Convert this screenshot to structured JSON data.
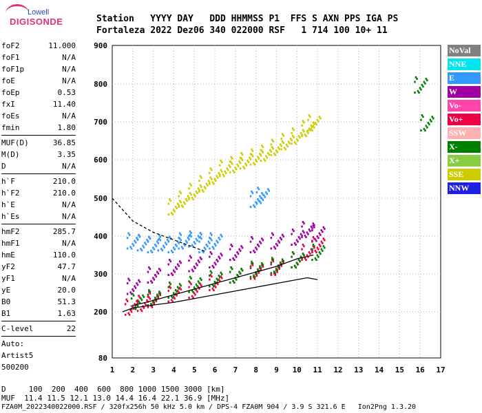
{
  "logo": {
    "top": "Lowell",
    "main": "DIGISONDE"
  },
  "header": {
    "line1": "Station   YYYY DAY   DDD HHMMSS P1  FFS S AXN PPS IGA PS",
    "line2": "Fortaleza 2022 Dez06 340 022000 RSF   1 714 100 10+ 11"
  },
  "params": {
    "group1": [
      {
        "name": "foF2",
        "value": "11.000"
      },
      {
        "name": "foF1",
        "value": "N/A"
      },
      {
        "name": "foF1p",
        "value": "N/A"
      },
      {
        "name": "foE",
        "value": "N/A"
      },
      {
        "name": "foEp",
        "value": "0.53"
      },
      {
        "name": "fxI",
        "value": "11.40"
      },
      {
        "name": "foEs",
        "value": "N/A"
      },
      {
        "name": "fmin",
        "value": "1.80"
      }
    ],
    "group2": [
      {
        "name": "MUF(D)",
        "value": "36.85"
      },
      {
        "name": "M(D)",
        "value": "3.35"
      },
      {
        "name": "D",
        "value": "N/A"
      }
    ],
    "group3": [
      {
        "name": "h`F",
        "value": "210.0"
      },
      {
        "name": "h`F2",
        "value": "210.0"
      },
      {
        "name": "h`E",
        "value": "N/A"
      },
      {
        "name": "h`Es",
        "value": "N/A"
      }
    ],
    "group4": [
      {
        "name": "hmF2",
        "value": "285.7"
      },
      {
        "name": "hmF1",
        "value": "N/A"
      },
      {
        "name": "hmE",
        "value": "110.0"
      },
      {
        "name": "yF2",
        "value": "47.7"
      },
      {
        "name": "yF1",
        "value": "N/A"
      },
      {
        "name": "yE",
        "value": "20.0"
      },
      {
        "name": "B0",
        "value": "51.3"
      },
      {
        "name": "B1",
        "value": "1.63"
      }
    ],
    "group5": [
      {
        "name": "C-level",
        "value": "22"
      }
    ],
    "auto": [
      "Auto:",
      "Artist5",
      "500200"
    ]
  },
  "legend": [
    {
      "label": "NoVal",
      "color": "#808080"
    },
    {
      "label": "NNE",
      "color": "#00e5ee"
    },
    {
      "label": "E",
      "color": "#3399ff"
    },
    {
      "label": "W",
      "color": "#a000a0"
    },
    {
      "label": "Vo-",
      "color": "#ff44aa"
    },
    {
      "label": "Vo+",
      "color": "#ee0044"
    },
    {
      "label": "SSW",
      "color": "#ffb0b0"
    },
    {
      "label": "X-",
      "color": "#008000"
    },
    {
      "label": "X+",
      "color": "#88cc44"
    },
    {
      "label": "SSE",
      "color": "#cccc00"
    },
    {
      "label": "NNW",
      "color": "#2020e0"
    }
  ],
  "footer": {
    "line1": "D     100  200  400  600  800 1000 1500 3000 [km]",
    "line2": "MUF  11.4 11.5 12.1 13.0 14.4 16.4 22.1 36.9 [MHz]",
    "line3": "FZA0M_2022340022000.RSF / 320fx256h 50 kHz 5.0 km / DPS-4 FZA0M 904 / 3.9 S 321.6 E   Ion2Png 1.3.20"
  },
  "chart_data": {
    "type": "scatter",
    "xlim": [
      1,
      17
    ],
    "ylim": [
      80,
      900
    ],
    "xticks": [
      "1",
      "2",
      "3",
      "4",
      "5",
      "6",
      "7",
      "8",
      "9",
      "10",
      "11",
      "12",
      "13",
      "14",
      "15",
      "16",
      "17"
    ],
    "yticks": [
      "80",
      "200",
      "300",
      "400",
      "500",
      "600",
      "700",
      "800",
      "900"
    ],
    "grid": true,
    "series": [
      {
        "name": "SSE",
        "color": "#cccc00",
        "x": [
          4.0,
          4.5,
          5.0,
          5.5,
          6.0,
          6.5,
          7.0,
          7.5,
          8.0,
          8.5,
          9.0,
          9.5,
          10.0,
          10.5,
          10.8
        ],
        "y": [
          480,
          500,
          520,
          540,
          560,
          580,
          590,
          600,
          610,
          620,
          635,
          650,
          665,
          685,
          700
        ]
      },
      {
        "name": "E",
        "color": "#3399ff",
        "x": [
          2.0,
          2.5,
          3.0,
          3.5,
          4.0,
          4.5,
          5.0,
          5.5,
          6.0,
          8.0,
          8.3
        ],
        "y": [
          390,
          385,
          380,
          385,
          380,
          390,
          395,
          380,
          390,
          500,
          510
        ]
      },
      {
        "name": "W",
        "color": "#a000a0",
        "x": [
          2.0,
          3.0,
          4.0,
          5.0,
          6.0,
          7.0,
          8.0,
          9.0,
          10.0,
          10.5,
          11.0
        ],
        "y": [
          270,
          300,
          320,
          330,
          340,
          360,
          380,
          390,
          400,
          420,
          410
        ]
      },
      {
        "name": "Vo+",
        "color": "#ee0044",
        "x": [
          1.9,
          2.5,
          3.0,
          4.0,
          5.0,
          6.0,
          7.0,
          8.0,
          9.0,
          10.0,
          10.5,
          11.0
        ],
        "y": [
          215,
          225,
          235,
          250,
          260,
          280,
          300,
          310,
          320,
          340,
          360,
          380
        ]
      },
      {
        "name": "X-",
        "color": "#008000",
        "x": [
          2.2,
          3.0,
          4.0,
          5.0,
          6.0,
          7.0,
          8.0,
          9.0,
          10.0,
          11.0,
          16.0,
          16.3
        ],
        "y": [
          230,
          240,
          260,
          275,
          290,
          300,
          315,
          325,
          340,
          360,
          800,
          700
        ]
      }
    ],
    "profile_true_height": {
      "x": [
        1.5,
        2.0,
        3.0,
        4.0,
        5.0,
        6.0,
        7.0,
        8.0,
        9.0,
        10.0,
        10.5,
        11.0
      ],
      "y": [
        200,
        210,
        218,
        225,
        235,
        245,
        255,
        265,
        275,
        285,
        290,
        285
      ]
    },
    "profile_upper": {
      "x": [
        1.9,
        3.0,
        4.0,
        5.0,
        6.0,
        7.0,
        8.0,
        9.0,
        10.0,
        10.8
      ],
      "y": [
        215,
        230,
        245,
        260,
        275,
        290,
        305,
        320,
        340,
        350
      ]
    },
    "profile_dashed": {
      "x": [
        1.0,
        2.0,
        3.0,
        4.0,
        5.0,
        5.5
      ],
      "y": [
        500,
        440,
        410,
        390,
        370,
        360
      ]
    }
  }
}
